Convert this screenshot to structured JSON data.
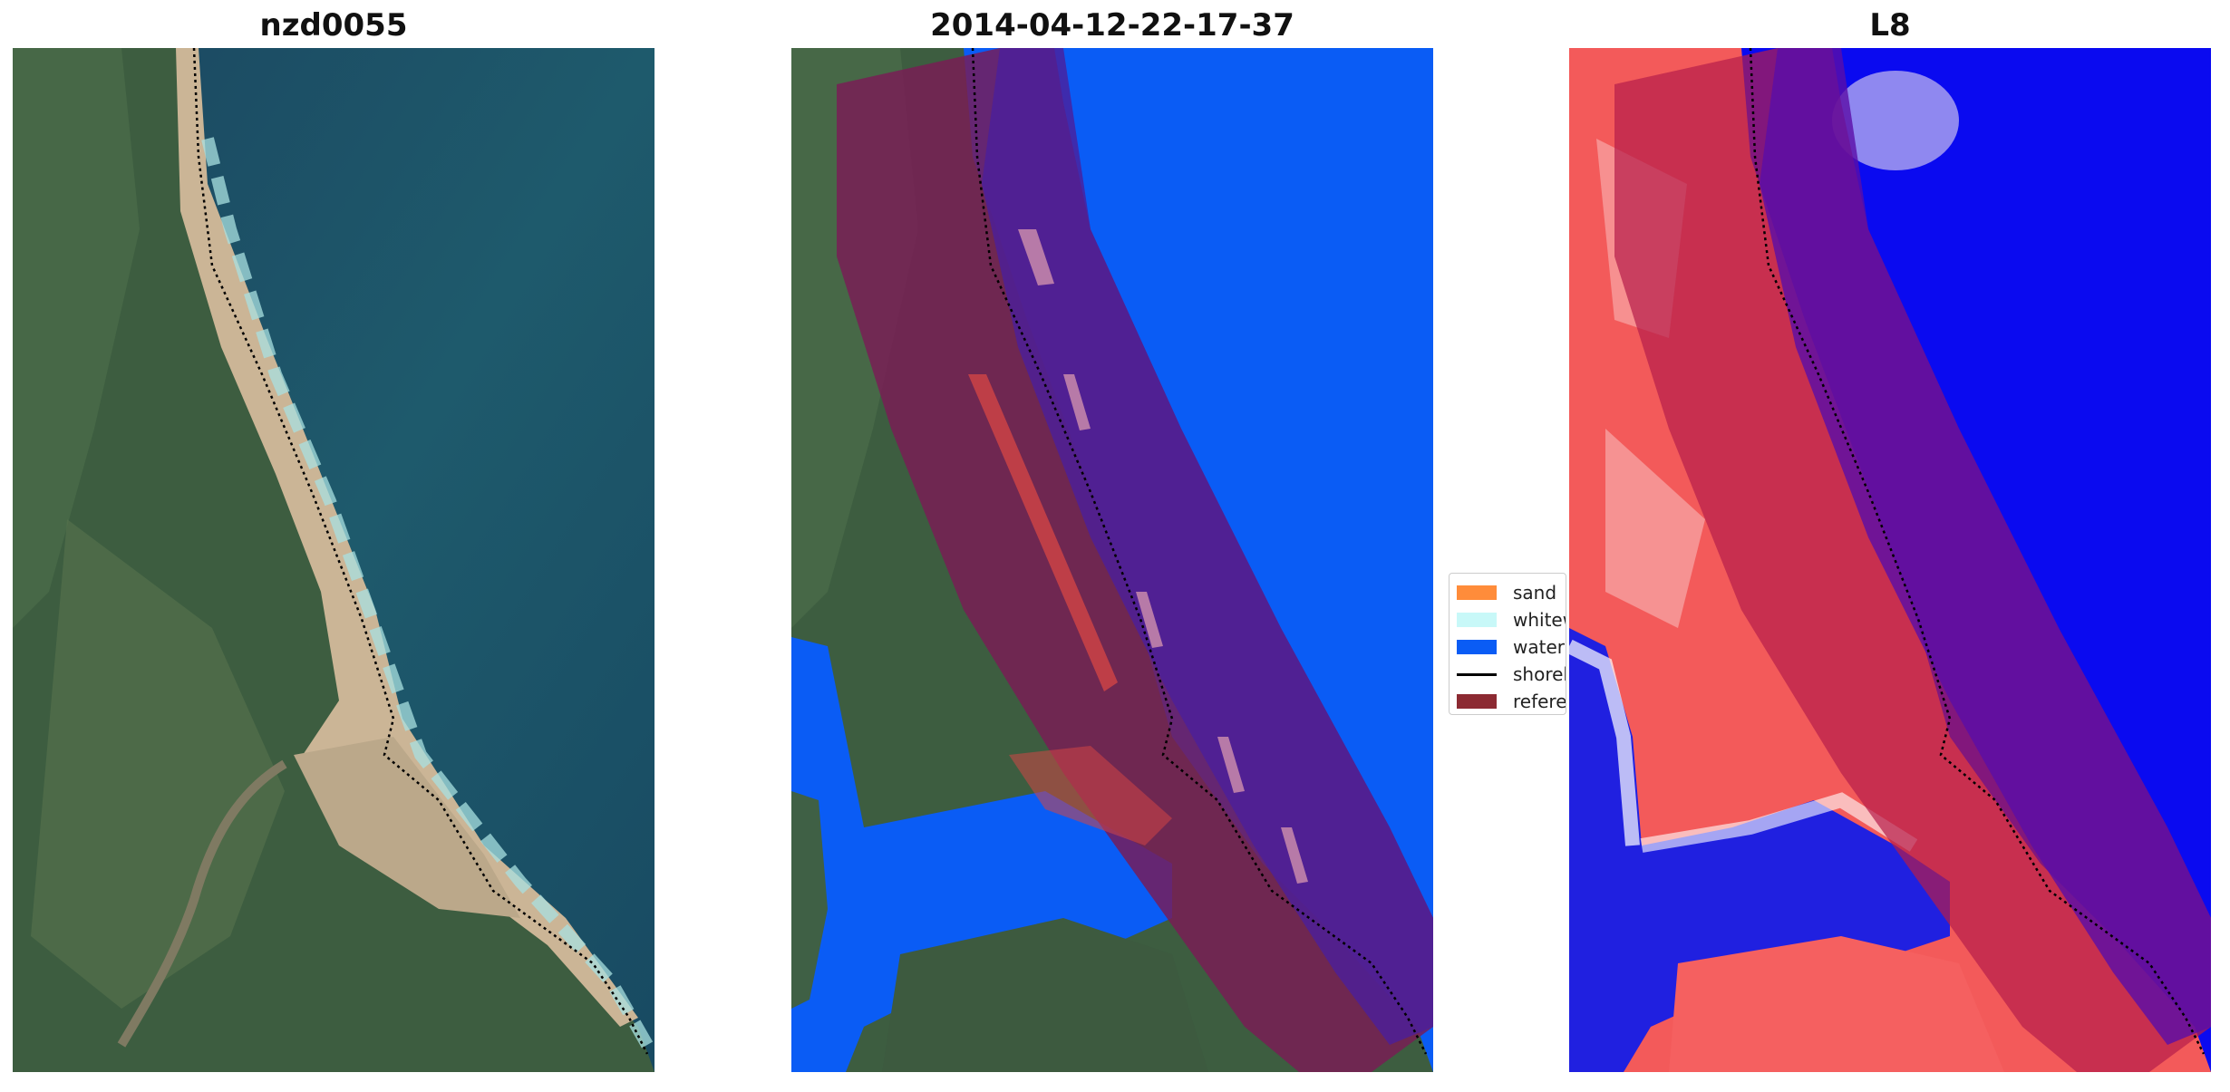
{
  "panels": [
    {
      "title": "nzd0055",
      "kind": "rgb-image"
    },
    {
      "title": "2014-04-12-22-17-37",
      "kind": "classified-image"
    },
    {
      "title": "L8",
      "kind": "index-image"
    }
  ],
  "legend": {
    "items": [
      {
        "label": "sand",
        "type": "patch",
        "color": "#ff8c3a"
      },
      {
        "label": "whitewater",
        "type": "patch",
        "color": "#c8f8f8"
      },
      {
        "label": "water",
        "type": "patch",
        "color": "#0a5cf5"
      },
      {
        "label": "shoreline",
        "type": "line",
        "color": "#000000"
      },
      {
        "label": "reference",
        "type": "patch",
        "color": "#8c2a32"
      }
    ]
  },
  "colors": {
    "ocean": "#1f5a6e",
    "land": "#3f6045",
    "sand": "#c9b393",
    "water_class": "#0a5cf5",
    "buffer_overlay": "#8a1f3c",
    "index_red": "#f35a5a",
    "index_blue": "#0a0af0"
  }
}
